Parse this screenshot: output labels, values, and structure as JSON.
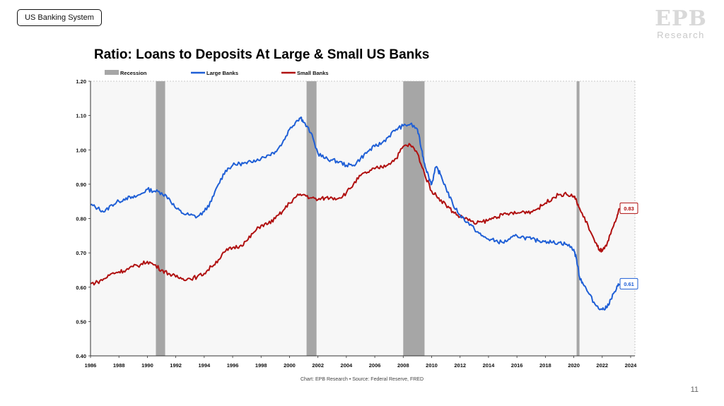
{
  "header": {
    "tag": "US Banking System",
    "logo_mark": "EPB",
    "logo_sub": "Research",
    "page_number": "11"
  },
  "chart_data": {
    "type": "line",
    "title": "Ratio: Loans to Deposits At Large & Small US Banks",
    "source": "Chart: EPB Research  •  Source: Federal Reserve, FRED",
    "xlim": [
      1986,
      2024.3
    ],
    "ylim": [
      0.4,
      1.2
    ],
    "x_ticks": [
      1986,
      1988,
      1990,
      1992,
      1994,
      1996,
      1998,
      2000,
      2002,
      2004,
      2006,
      2008,
      2010,
      2012,
      2014,
      2016,
      2018,
      2020,
      2022,
      2024
    ],
    "y_ticks": [
      "0.40",
      "0.50",
      "0.60",
      "0.70",
      "0.80",
      "0.90",
      "1.00",
      "1.10",
      "1.20"
    ],
    "legend": [
      {
        "name": "Recession",
        "color": "#a6a6a6"
      },
      {
        "name": "Large Banks",
        "color": "#1f5fd6"
      },
      {
        "name": "Small Banks",
        "color": "#b01010"
      }
    ],
    "recessions": [
      [
        1990.6,
        1991.25
      ],
      [
        2001.2,
        2001.9
      ],
      [
        2008.0,
        2009.5
      ],
      [
        2020.2,
        2020.4
      ]
    ],
    "series": [
      {
        "name": "Large Banks",
        "color": "#1f5fd6",
        "end_label": "0.61",
        "points": [
          [
            1986,
            0.84
          ],
          [
            1986.5,
            0.83
          ],
          [
            1987,
            0.82
          ],
          [
            1987.5,
            0.84
          ],
          [
            1988,
            0.85
          ],
          [
            1988.5,
            0.86
          ],
          [
            1989,
            0.86
          ],
          [
            1989.5,
            0.87
          ],
          [
            1990,
            0.885
          ],
          [
            1990.5,
            0.88
          ],
          [
            1991,
            0.875
          ],
          [
            1991.5,
            0.86
          ],
          [
            1992,
            0.83
          ],
          [
            1992.5,
            0.815
          ],
          [
            1993,
            0.81
          ],
          [
            1993.5,
            0.805
          ],
          [
            1994,
            0.82
          ],
          [
            1994.5,
            0.85
          ],
          [
            1995,
            0.9
          ],
          [
            1995.5,
            0.94
          ],
          [
            1996,
            0.955
          ],
          [
            1996.5,
            0.96
          ],
          [
            1997,
            0.96
          ],
          [
            1997.5,
            0.97
          ],
          [
            1998,
            0.975
          ],
          [
            1998.5,
            0.985
          ],
          [
            1999,
            0.995
          ],
          [
            1999.5,
            1.02
          ],
          [
            2000,
            1.06
          ],
          [
            2000.5,
            1.085
          ],
          [
            2000.8,
            1.095
          ],
          [
            2001,
            1.08
          ],
          [
            2001.5,
            1.05
          ],
          [
            2002,
            0.99
          ],
          [
            2002.5,
            0.975
          ],
          [
            2003,
            0.97
          ],
          [
            2003.5,
            0.965
          ],
          [
            2004,
            0.955
          ],
          [
            2004.5,
            0.955
          ],
          [
            2005,
            0.975
          ],
          [
            2005.5,
            0.995
          ],
          [
            2006,
            1.01
          ],
          [
            2006.5,
            1.02
          ],
          [
            2007,
            1.04
          ],
          [
            2007.5,
            1.06
          ],
          [
            2008,
            1.07
          ],
          [
            2008.5,
            1.075
          ],
          [
            2009,
            1.06
          ],
          [
            2009.3,
            1.0
          ],
          [
            2009.5,
            0.96
          ],
          [
            2009.8,
            0.92
          ],
          [
            2010,
            0.9
          ],
          [
            2010.3,
            0.95
          ],
          [
            2010.6,
            0.93
          ],
          [
            2011,
            0.89
          ],
          [
            2011.5,
            0.84
          ],
          [
            2012,
            0.81
          ],
          [
            2012.5,
            0.79
          ],
          [
            2013,
            0.77
          ],
          [
            2013.5,
            0.75
          ],
          [
            2014,
            0.74
          ],
          [
            2014.5,
            0.735
          ],
          [
            2015,
            0.73
          ],
          [
            2015.5,
            0.74
          ],
          [
            2016,
            0.75
          ],
          [
            2016.5,
            0.745
          ],
          [
            2017,
            0.74
          ],
          [
            2017.5,
            0.735
          ],
          [
            2018,
            0.735
          ],
          [
            2018.5,
            0.73
          ],
          [
            2019,
            0.73
          ],
          [
            2019.5,
            0.725
          ],
          [
            2020,
            0.71
          ],
          [
            2020.2,
            0.68
          ],
          [
            2020.4,
            0.63
          ],
          [
            2020.6,
            0.615
          ],
          [
            2021,
            0.585
          ],
          [
            2021.5,
            0.55
          ],
          [
            2022,
            0.535
          ],
          [
            2022.3,
            0.54
          ],
          [
            2022.6,
            0.565
          ],
          [
            2023,
            0.595
          ],
          [
            2023.2,
            0.61
          ]
        ]
      },
      {
        "name": "Small Banks",
        "color": "#b01010",
        "end_label": "0.83",
        "points": [
          [
            1986,
            0.61
          ],
          [
            1986.5,
            0.615
          ],
          [
            1987,
            0.625
          ],
          [
            1987.5,
            0.64
          ],
          [
            1988,
            0.645
          ],
          [
            1988.5,
            0.65
          ],
          [
            1989,
            0.66
          ],
          [
            1989.5,
            0.665
          ],
          [
            1990,
            0.675
          ],
          [
            1990.5,
            0.665
          ],
          [
            1991,
            0.65
          ],
          [
            1991.5,
            0.64
          ],
          [
            1992,
            0.63
          ],
          [
            1992.5,
            0.625
          ],
          [
            1993,
            0.625
          ],
          [
            1993.5,
            0.63
          ],
          [
            1994,
            0.64
          ],
          [
            1994.5,
            0.66
          ],
          [
            1995,
            0.68
          ],
          [
            1995.5,
            0.705
          ],
          [
            1996,
            0.715
          ],
          [
            1996.5,
            0.72
          ],
          [
            1997,
            0.735
          ],
          [
            1997.5,
            0.76
          ],
          [
            1998,
            0.78
          ],
          [
            1998.5,
            0.785
          ],
          [
            1999,
            0.8
          ],
          [
            1999.5,
            0.82
          ],
          [
            2000,
            0.845
          ],
          [
            2000.5,
            0.865
          ],
          [
            2001,
            0.87
          ],
          [
            2001.5,
            0.86
          ],
          [
            2002,
            0.855
          ],
          [
            2002.5,
            0.86
          ],
          [
            2003,
            0.86
          ],
          [
            2003.5,
            0.86
          ],
          [
            2004,
            0.875
          ],
          [
            2004.5,
            0.9
          ],
          [
            2005,
            0.925
          ],
          [
            2005.5,
            0.935
          ],
          [
            2006,
            0.945
          ],
          [
            2006.5,
            0.95
          ],
          [
            2007,
            0.96
          ],
          [
            2007.5,
            0.975
          ],
          [
            2008,
            1.01
          ],
          [
            2008.5,
            1.015
          ],
          [
            2009,
            0.99
          ],
          [
            2009.5,
            0.93
          ],
          [
            2010,
            0.88
          ],
          [
            2010.5,
            0.86
          ],
          [
            2011,
            0.84
          ],
          [
            2011.5,
            0.82
          ],
          [
            2012,
            0.805
          ],
          [
            2012.5,
            0.8
          ],
          [
            2013,
            0.785
          ],
          [
            2013.5,
            0.79
          ],
          [
            2014,
            0.795
          ],
          [
            2014.5,
            0.805
          ],
          [
            2015,
            0.81
          ],
          [
            2015.5,
            0.815
          ],
          [
            2016,
            0.815
          ],
          [
            2016.5,
            0.82
          ],
          [
            2017,
            0.82
          ],
          [
            2017.5,
            0.83
          ],
          [
            2018,
            0.845
          ],
          [
            2018.5,
            0.86
          ],
          [
            2019,
            0.87
          ],
          [
            2019.5,
            0.87
          ],
          [
            2020,
            0.865
          ],
          [
            2020.2,
            0.85
          ],
          [
            2020.5,
            0.82
          ],
          [
            2021,
            0.78
          ],
          [
            2021.5,
            0.73
          ],
          [
            2021.8,
            0.71
          ],
          [
            2022,
            0.705
          ],
          [
            2022.3,
            0.72
          ],
          [
            2022.6,
            0.755
          ],
          [
            2023,
            0.8
          ],
          [
            2023.2,
            0.83
          ]
        ]
      }
    ]
  }
}
